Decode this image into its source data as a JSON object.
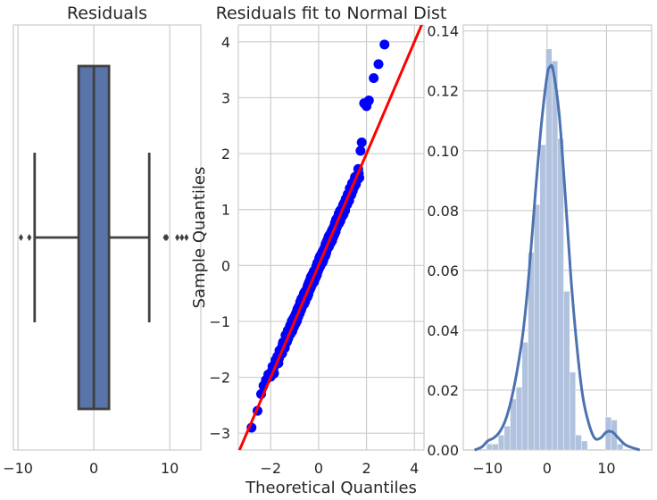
{
  "chart_data": [
    {
      "type": "box",
      "title": "Residuals",
      "xlabel": "",
      "ylabel": "",
      "xlim": [
        -10.6,
        14.1
      ],
      "x_ticks": [
        -10,
        0,
        10
      ],
      "x_tick_labels": [
        "−10",
        "0",
        "10"
      ],
      "grid": true,
      "box": {
        "q1": -2.0,
        "median": 0.0,
        "q3": 2.0,
        "whisker_low": -7.8,
        "whisker_high": 7.3,
        "fliers": [
          -9.6,
          -8.5,
          9.4,
          9.6,
          11.0,
          11.6,
          12.2
        ],
        "color": "#5874a8"
      }
    },
    {
      "type": "scatter",
      "title": "Residuals fit to Normal Dist",
      "xlabel": "Theoretical Quantiles",
      "ylabel": "Sample Quantiles",
      "xlim": [
        -3.35,
        4.4
      ],
      "ylim": [
        -3.3,
        4.3
      ],
      "x_ticks": [
        -2,
        0,
        2,
        4
      ],
      "x_tick_labels": [
        "−2",
        "0",
        "2",
        "4"
      ],
      "y_ticks": [
        -3,
        -2,
        -1,
        0,
        1,
        2,
        3,
        4
      ],
      "y_tick_labels": [
        "−3",
        "−2",
        "−1",
        "0",
        "1",
        "2",
        "3",
        "4"
      ],
      "grid": true,
      "point_color": "#0000ff",
      "line_color": "#ff0000",
      "reference_line": {
        "slope": 1.0,
        "intercept": 0.0
      },
      "tail_points": [
        {
          "x": -2.8,
          "y": -2.9
        },
        {
          "x": -2.55,
          "y": -2.6
        },
        {
          "x": -2.4,
          "y": -2.3
        },
        {
          "x": -2.3,
          "y": -2.15
        },
        {
          "x": -2.2,
          "y": -2.05
        },
        {
          "x": -2.1,
          "y": -1.95
        },
        {
          "x": 1.75,
          "y": 2.05
        },
        {
          "x": 1.8,
          "y": 2.2
        },
        {
          "x": 1.9,
          "y": 2.9
        },
        {
          "x": 2.0,
          "y": 2.85
        },
        {
          "x": 2.1,
          "y": 2.95
        },
        {
          "x": 2.3,
          "y": 3.35
        },
        {
          "x": 2.5,
          "y": 3.6
        },
        {
          "x": 2.75,
          "y": 3.95
        }
      ]
    },
    {
      "type": "bar",
      "title": "",
      "xlabel": "",
      "ylabel": "",
      "xlim": [
        -14.1,
        17.6
      ],
      "ylim": [
        0,
        0.142
      ],
      "x_ticks": [
        -10,
        0,
        10
      ],
      "x_tick_labels": [
        "−10",
        "0",
        "10"
      ],
      "y_ticks": [
        0,
        0.02,
        0.04,
        0.06,
        0.08,
        0.1,
        0.12,
        0.14
      ],
      "y_tick_labels": [
        "0.00",
        "0.02",
        "0.04",
        "0.06",
        "0.08",
        "0.10",
        "0.12",
        "0.14"
      ],
      "grid": true,
      "bar_color": "#b1c2de",
      "kde_color": "#4c72b0",
      "histogram": {
        "bin_edges": [
          -12.2,
          -11.2,
          -10.2,
          -9.2,
          -8.2,
          -7.2,
          -6.2,
          -5.2,
          -4.2,
          -3.2,
          -2.2,
          -1.2,
          -0.2,
          0.8,
          1.8,
          2.8,
          3.8,
          4.8,
          5.8,
          6.8,
          7.8,
          8.8,
          9.8,
          10.8,
          11.8,
          12.8,
          13.8
        ],
        "values": [
          0.0,
          0.0,
          0.002,
          0.002,
          0.005,
          0.008,
          0.017,
          0.021,
          0.036,
          0.066,
          0.082,
          0.102,
          0.134,
          0.13,
          0.104,
          0.053,
          0.026,
          0.005,
          0.003,
          0.0,
          0.0,
          0.0,
          0.011,
          0.01,
          0.002,
          0.0
        ]
      },
      "kde": {
        "x": [
          -12.2,
          -11,
          -10,
          -9,
          -8,
          -7,
          -6,
          -5,
          -4,
          -3,
          -2,
          -1,
          0,
          0.5,
          1,
          2,
          3,
          4,
          5,
          6,
          7,
          8,
          9,
          10,
          11,
          12,
          13,
          14,
          15.6
        ],
        "y": [
          0.0,
          0.001,
          0.003,
          0.004,
          0.006,
          0.01,
          0.017,
          0.027,
          0.04,
          0.06,
          0.085,
          0.108,
          0.125,
          0.128,
          0.127,
          0.113,
          0.087,
          0.058,
          0.035,
          0.018,
          0.009,
          0.004,
          0.004,
          0.006,
          0.006,
          0.004,
          0.002,
          0.001,
          0.0
        ]
      }
    }
  ]
}
